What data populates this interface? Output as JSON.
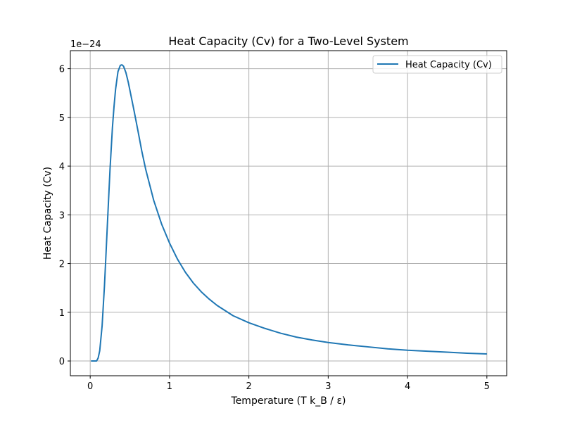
{
  "chart_data": {
    "type": "line",
    "title": "Heat Capacity (Cv) for a Two-Level System",
    "xlabel": "Temperature (T k_B / ε)",
    "ylabel": "Heat Capacity (Cv)",
    "y_offset_label": "1e−24",
    "y_scale": 1e-24,
    "xlim": [
      -0.25,
      5.25
    ],
    "ylim": [
      -0.303,
      6.37
    ],
    "x_ticks": [
      0,
      1,
      2,
      3,
      4,
      5
    ],
    "x_tick_labels": [
      "0",
      "1",
      "2",
      "3",
      "4",
      "5"
    ],
    "y_ticks": [
      0,
      1,
      2,
      3,
      4,
      5,
      6
    ],
    "y_tick_labels": [
      "0",
      "1",
      "2",
      "3",
      "4",
      "5",
      "6"
    ],
    "grid": true,
    "legend_position": "top-right",
    "series": [
      {
        "name": "Heat Capacity (Cv)",
        "color": "#1f77b4",
        "x": [
          0.01,
          0.05,
          0.08,
          0.1,
          0.12,
          0.15,
          0.18,
          0.2,
          0.22,
          0.25,
          0.28,
          0.3,
          0.32,
          0.35,
          0.38,
          0.4,
          0.42,
          0.45,
          0.48,
          0.5,
          0.55,
          0.6,
          0.65,
          0.7,
          0.8,
          0.9,
          1.0,
          1.1,
          1.2,
          1.3,
          1.4,
          1.5,
          1.6,
          1.8,
          2.0,
          2.2,
          2.4,
          2.6,
          2.8,
          3.0,
          3.25,
          3.5,
          3.75,
          4.0,
          4.25,
          4.5,
          4.75,
          5.0
        ],
        "y": [
          0.0,
          0.0,
          0.0,
          0.06,
          0.21,
          0.72,
          1.55,
          2.23,
          2.92,
          3.94,
          4.79,
          5.22,
          5.58,
          5.94,
          6.07,
          6.08,
          6.05,
          5.92,
          5.72,
          5.56,
          5.16,
          4.74,
          4.31,
          3.93,
          3.3,
          2.81,
          2.42,
          2.09,
          1.82,
          1.6,
          1.42,
          1.27,
          1.14,
          0.93,
          0.785,
          0.67,
          0.57,
          0.49,
          0.43,
          0.38,
          0.33,
          0.29,
          0.25,
          0.22,
          0.2,
          0.18,
          0.16,
          0.145
        ]
      }
    ]
  }
}
